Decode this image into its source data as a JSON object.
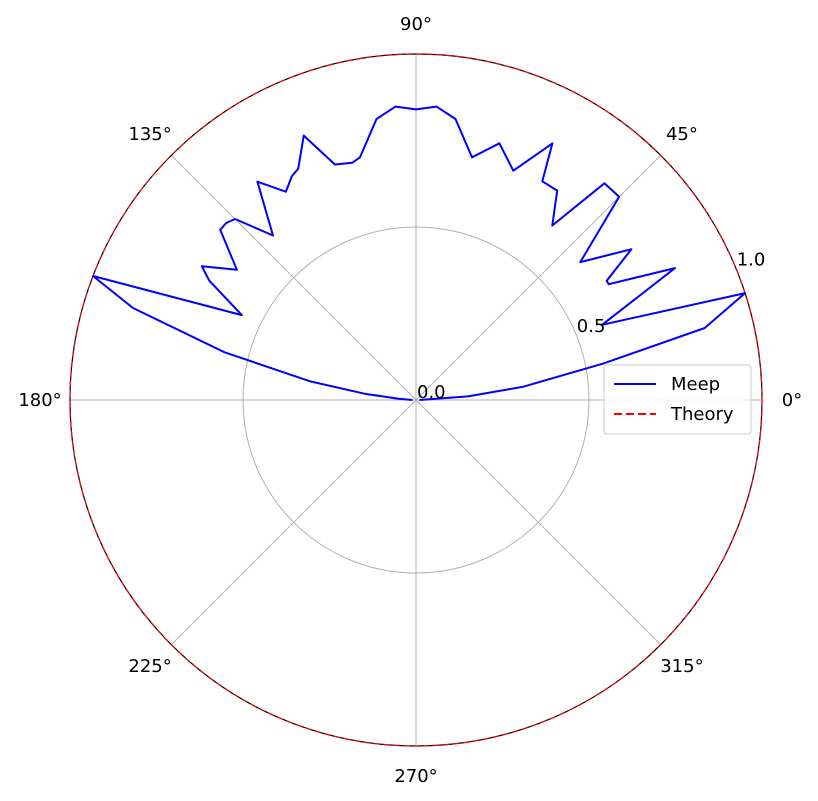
{
  "chart_data": {
    "type": "line",
    "projection": "polar",
    "title": "",
    "theta_ticks": [
      "0°",
      "45°",
      "90°",
      "135°",
      "180°",
      "225°",
      "270°",
      "315°"
    ],
    "theta_tick_values_deg": [
      0,
      45,
      90,
      135,
      180,
      225,
      270,
      315
    ],
    "r_ticks": [
      "0.0",
      "0.5",
      "1.0"
    ],
    "r_tick_values": [
      0.0,
      0.5,
      1.0
    ],
    "r_label_angle_deg": 22.5,
    "rlim": [
      0,
      1.0
    ],
    "grid": true,
    "legend": {
      "position": "right",
      "entries": [
        "Meep",
        "Theory"
      ]
    },
    "series": [
      {
        "name": "Meep",
        "color": "#0000ff",
        "style": "solid",
        "theta_deg": [
          0,
          4,
          7,
          11,
          14,
          18,
          22,
          27,
          31,
          32,
          35,
          40,
          45,
          46,
          49,
          52,
          56,
          60,
          62,
          67,
          72,
          77,
          82,
          86,
          90,
          94,
          98,
          103,
          105,
          109,
          113,
          117,
          119,
          122,
          126,
          131,
          135,
          137,
          139,
          144,
          148,
          150,
          154,
          159,
          162,
          166,
          170,
          173,
          176,
          180
        ],
        "r": [
          0.01,
          0.15,
          0.31,
          0.55,
          0.86,
          1.0,
          0.58,
          0.84,
          0.65,
          0.65,
          0.76,
          0.62,
          0.83,
          0.83,
          0.83,
          0.64,
          0.73,
          0.73,
          0.84,
          0.72,
          0.78,
          0.72,
          0.82,
          0.85,
          0.84,
          0.85,
          0.82,
          0.72,
          0.71,
          0.72,
          0.83,
          0.75,
          0.74,
          0.71,
          0.78,
          0.63,
          0.74,
          0.75,
          0.75,
          0.64,
          0.73,
          0.69,
          0.56,
          1.0,
          0.86,
          0.57,
          0.31,
          0.15,
          0.05,
          0.01
        ]
      },
      {
        "name": "Theory",
        "color": "#ff0000",
        "style": "dashed",
        "r_constant": 1.0
      }
    ]
  }
}
